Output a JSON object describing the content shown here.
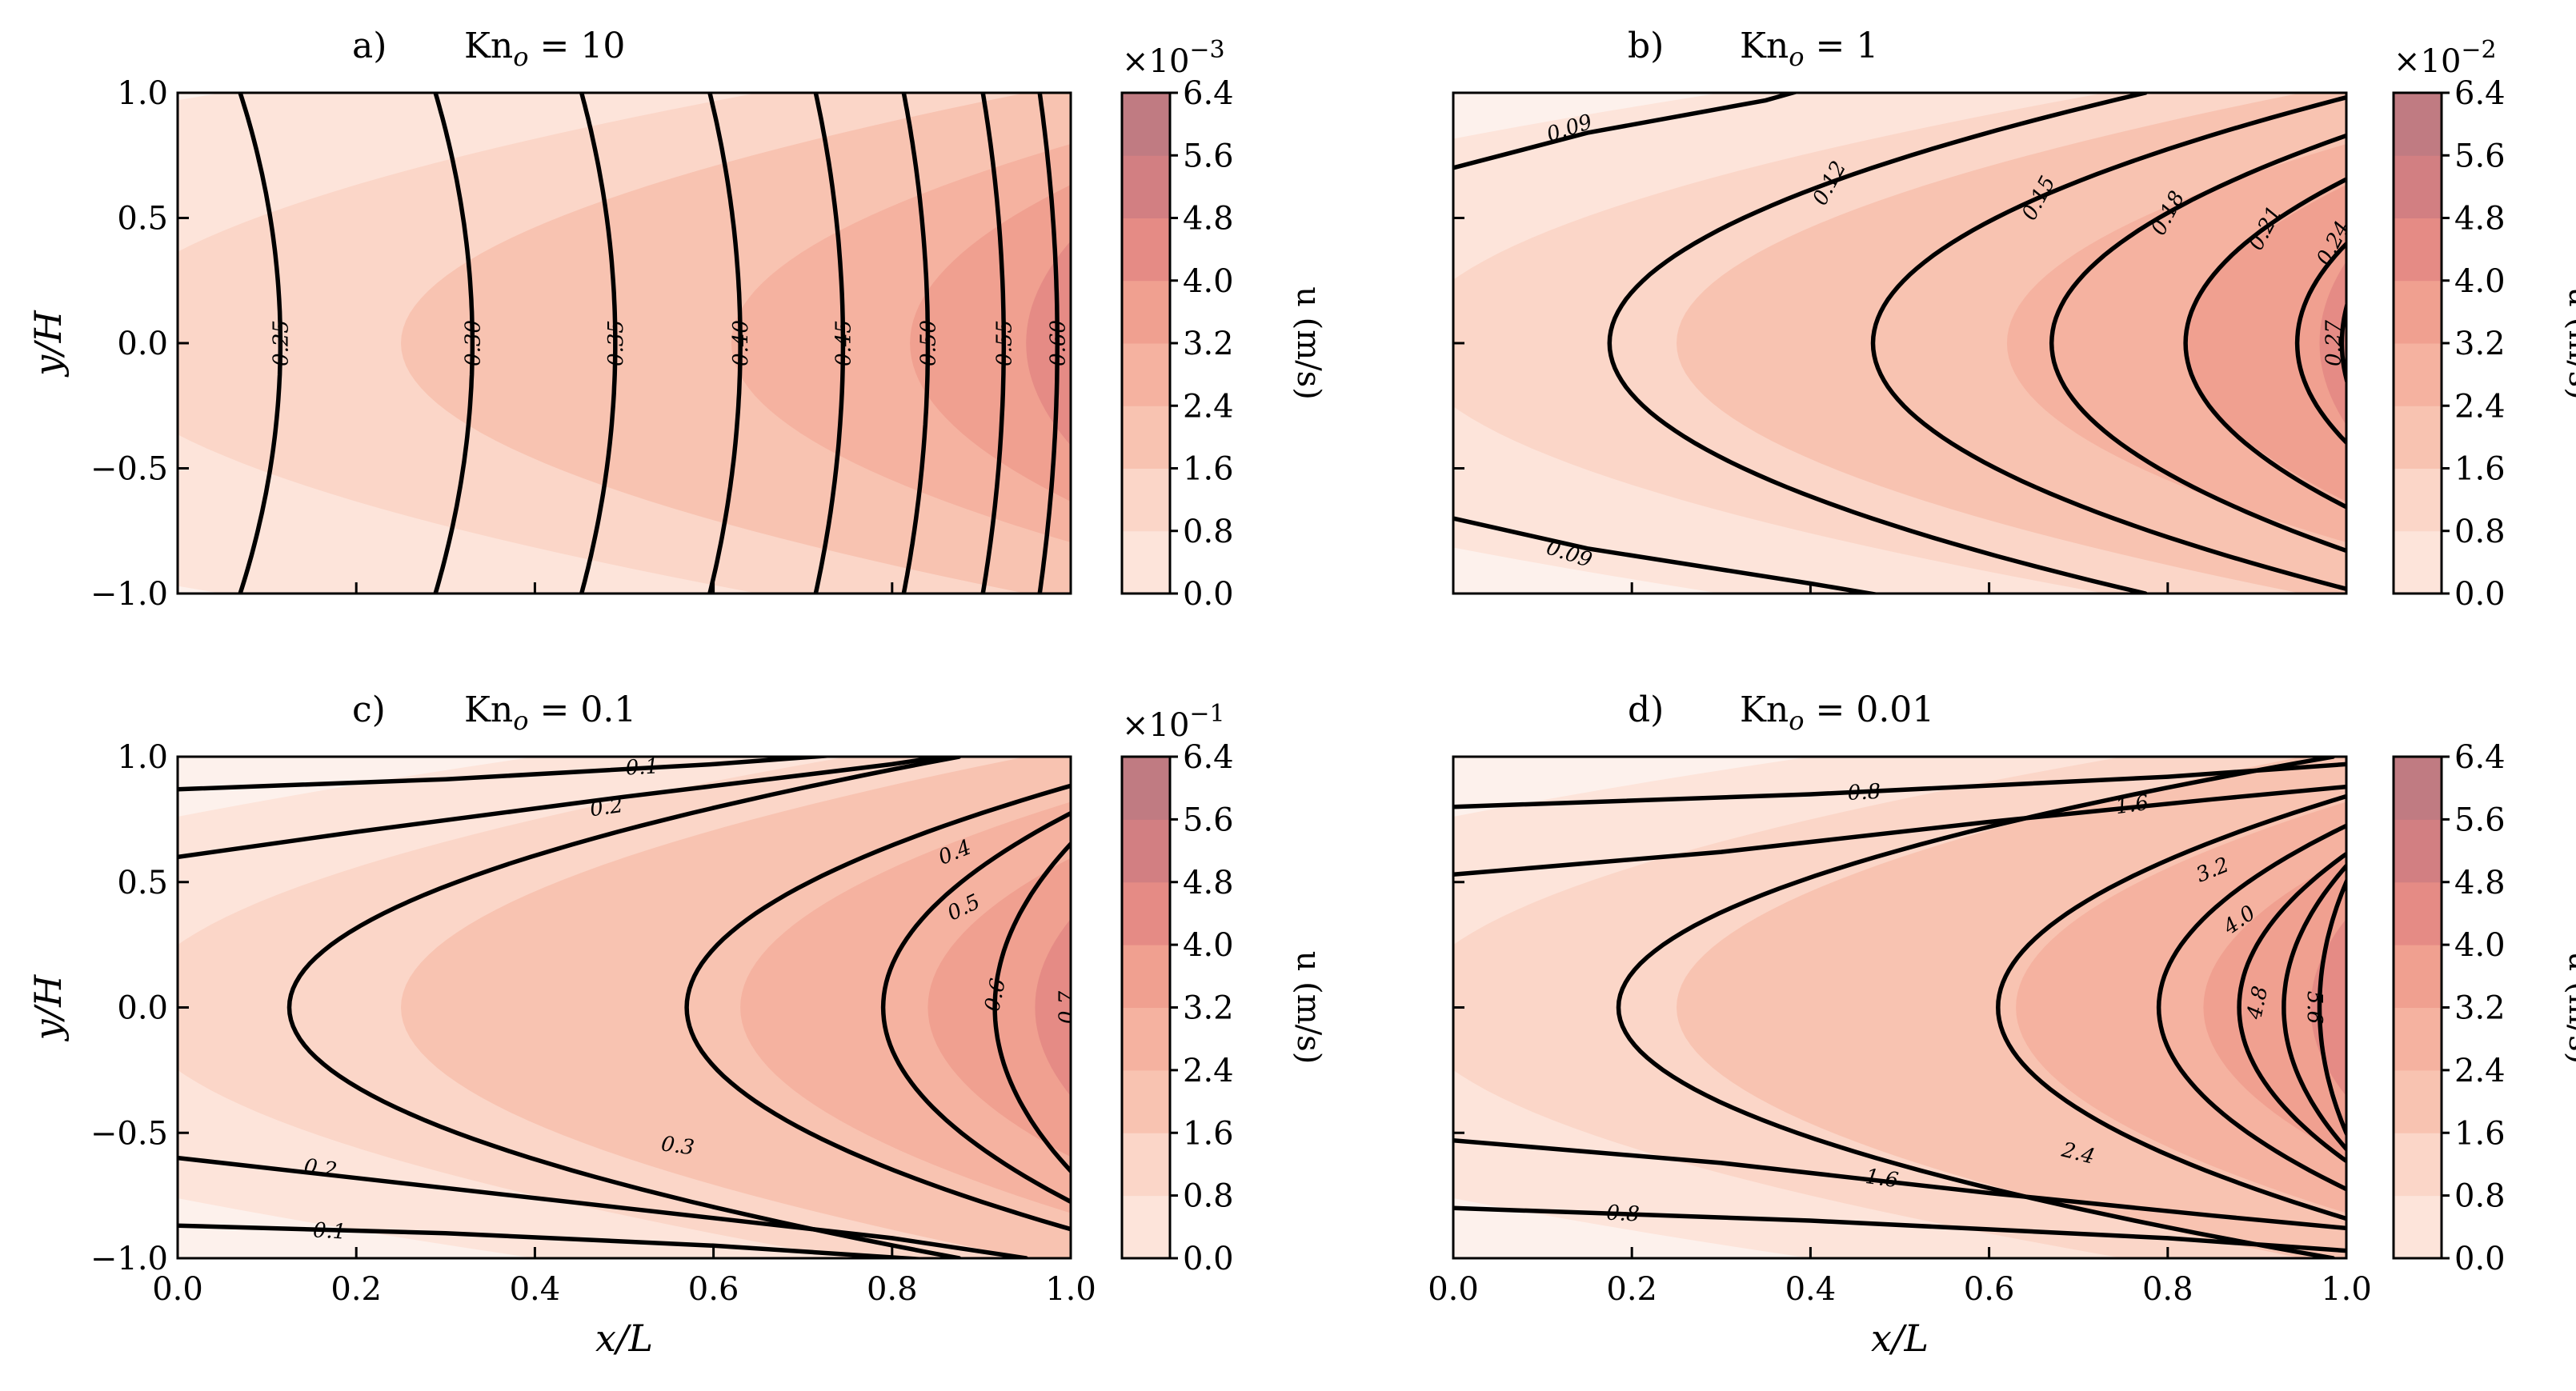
{
  "figure": {
    "x_axis_label": "x/L",
    "y_axis_label": "y/H",
    "colorbar_label": "u (m/s)",
    "colorbar_ticks": [
      "0.0",
      "0.8",
      "1.6",
      "2.4",
      "3.2",
      "4.0",
      "4.8",
      "5.6",
      "6.4"
    ],
    "x_ticks": [
      "0.0",
      "0.2",
      "0.4",
      "0.6",
      "0.8",
      "1.0"
    ],
    "y_ticks": [
      "−1.0",
      "−0.5",
      "0.0",
      "0.5",
      "1.0"
    ],
    "fill_colors": [
      "#fdf1ec",
      "#fde4da",
      "#fbd6c8",
      "#f8c3b1",
      "#f5b2a0",
      "#f0a090",
      "#e58b85",
      "#d27f82",
      "#c07b82"
    ]
  },
  "chart_data": [
    {
      "type": "contour",
      "panel_letter": "a)",
      "title": "Kn_o = 10",
      "title_main": "Kn",
      "title_sub": "o",
      "title_value": " = 10",
      "multiplier": "×10",
      "exponent": "−3",
      "colorbar_range": [
        0.0,
        6.4
      ],
      "xlim": [
        0.0,
        1.0
      ],
      "ylim": [
        -1.0,
        1.0
      ],
      "contour_levels": [
        0.25,
        0.3,
        0.35,
        0.4,
        0.45,
        0.5,
        0.55,
        0.6
      ],
      "contour_labels": [
        "0.25",
        "0.30",
        "0.35",
        "0.40",
        "0.45",
        "0.50",
        "0.55",
        "0.60"
      ],
      "contour_x_at_center": [
        0.115,
        0.33,
        0.49,
        0.63,
        0.745,
        0.84,
        0.925,
        0.985
      ],
      "contour_curvature": 0.045
    },
    {
      "type": "contour",
      "panel_letter": "b)",
      "title": "Kn_o = 1",
      "title_main": "Kn",
      "title_sub": "o",
      "title_value": " = 1",
      "multiplier": "×10",
      "exponent": "−2",
      "colorbar_range": [
        0.0,
        6.4
      ],
      "xlim": [
        0.0,
        1.0
      ],
      "ylim": [
        -1.0,
        1.0
      ],
      "contour_levels": [
        0.09,
        0.12,
        0.15,
        0.18,
        0.21,
        0.24,
        0.27
      ],
      "contour_labels": [
        "0.09",
        "0.09",
        "0.12",
        "0.15",
        "0.18",
        "0.21",
        "0.24",
        "0.27"
      ]
    },
    {
      "type": "contour",
      "panel_letter": "c)",
      "title": "Kn_o = 0.1",
      "title_main": "Kn",
      "title_sub": "o",
      "title_value": " = 0.1",
      "multiplier": "×10",
      "exponent": "−1",
      "colorbar_range": [
        0.0,
        6.4
      ],
      "xlim": [
        0.0,
        1.0
      ],
      "ylim": [
        -1.0,
        1.0
      ],
      "contour_levels": [
        0.1,
        0.2,
        0.3,
        0.4,
        0.5,
        0.6,
        0.7
      ],
      "contour_labels": [
        "0.1",
        "0.2",
        "0.4",
        "0.5",
        "0.6",
        "0.7",
        "0.3",
        "0.2",
        "0.1"
      ]
    },
    {
      "type": "contour",
      "panel_letter": "d)",
      "title": "Kn_o = 0.01",
      "title_main": "Kn",
      "title_sub": "o",
      "title_value": " = 0.01",
      "multiplier": "",
      "exponent": "",
      "colorbar_range": [
        0.0,
        6.4
      ],
      "xlim": [
        0.0,
        1.0
      ],
      "ylim": [
        -1.0,
        1.0
      ],
      "contour_levels": [
        0.8,
        1.6,
        2.4,
        3.2,
        4.0,
        4.8,
        5.6
      ],
      "contour_labels": [
        "0.8",
        "1.6",
        "3.2",
        "4.0",
        "4.8",
        "5.6",
        "2.4",
        "1.6",
        "0.8"
      ]
    }
  ]
}
